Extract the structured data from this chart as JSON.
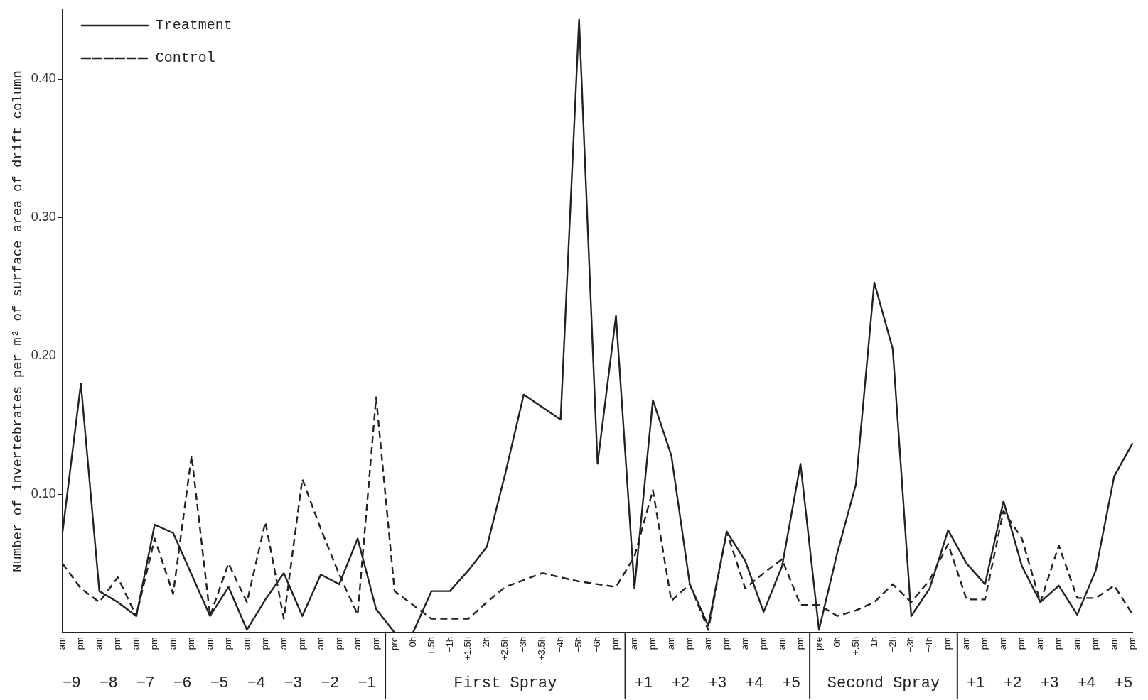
{
  "chart_data": {
    "type": "line",
    "ylabel": "Number of invertebrates per m² of surface area of drift column",
    "categories": [
      "am",
      "pm",
      "am",
      "pm",
      "am",
      "pm",
      "am",
      "pm",
      "am",
      "pm",
      "am",
      "pm",
      "am",
      "pm",
      "am",
      "pm",
      "am",
      "pm",
      "pre",
      "0h",
      "+.5h",
      "+1h",
      "+1.5h",
      "+2h",
      "+2.5h",
      "+3h",
      "+3.5h",
      "+4h",
      "+5h",
      "+6h",
      "pm",
      "am",
      "pm",
      "am",
      "pm",
      "am",
      "pm",
      "am",
      "pm",
      "am",
      "pm",
      "pre",
      "0h",
      "+.5h",
      "+1h",
      "+2h",
      "+3h",
      "+4h",
      "pm",
      "am",
      "pm",
      "am",
      "pm",
      "am",
      "pm",
      "am",
      "pm",
      "am",
      "pm"
    ],
    "series": [
      {
        "name": "Treatment",
        "color": "#222222",
        "line_style": "solid",
        "values": [
          0.072,
          0.18,
          0.03,
          0.022,
          0.012,
          0.078,
          0.072,
          0.042,
          0.012,
          0.033,
          0.002,
          0.024,
          0.043,
          0.012,
          0.042,
          0.035,
          0.068,
          0.017,
          0,
          0,
          0.03,
          0.03,
          0.045,
          0.062,
          0.115,
          0.172,
          0.163,
          0.154,
          0.443,
          0.122,
          0.229,
          0.032,
          0.168,
          0.128,
          0.035,
          0.005,
          0.073,
          0.052,
          0.015,
          0.048,
          0.122,
          0.002,
          0.058,
          0.107,
          0.253,
          0.205,
          0.012,
          0.032,
          0.074,
          0.05,
          0.035,
          0.095,
          0.048,
          0.022,
          0.034,
          0.013,
          0.045,
          0.113,
          0.137
        ]
      },
      {
        "name": "Control",
        "color": "#222222",
        "line_style": "dashed",
        "values": [
          0.05,
          0.032,
          0.022,
          0.04,
          0.012,
          0.068,
          0.028,
          0.128,
          0.012,
          0.05,
          0.022,
          0.08,
          0.01,
          0.111,
          0.075,
          0.042,
          0.013,
          0.17,
          0.03,
          0.02,
          0.01,
          0.01,
          0.01,
          0.022,
          0.033,
          0.038,
          0.043,
          0.04,
          0.037,
          0.035,
          0.033,
          0.055,
          0.103,
          0.023,
          0.035,
          0.002,
          0.073,
          0.032,
          0.043,
          0.053,
          0.02,
          0.02,
          0.012,
          0.016,
          0.022,
          0.035,
          0.022,
          0.038,
          0.064,
          0.024,
          0.024,
          0.088,
          0.068,
          0.022,
          0.063,
          0.025,
          0.025,
          0.034,
          0.013
        ]
      }
    ],
    "ylim": [
      0,
      0.45
    ],
    "yticks": [
      {
        "value": 0.1,
        "label": "0.10"
      },
      {
        "value": 0.2,
        "label": "0.20"
      },
      {
        "value": 0.3,
        "label": "0.30"
      },
      {
        "value": 0.4,
        "label": "0.40"
      }
    ],
    "annotations": [
      "−9",
      "−8",
      "−7",
      "−6",
      "−5",
      "−4",
      "−3",
      "−2",
      "−1",
      "First Spray",
      "+1",
      "+2",
      "+3",
      "+4",
      "+5",
      "Second Spray",
      "+1",
      "+2",
      "+3",
      "+4",
      "+5"
    ],
    "grid": false,
    "legend": "top left",
    "marker": "none"
  }
}
